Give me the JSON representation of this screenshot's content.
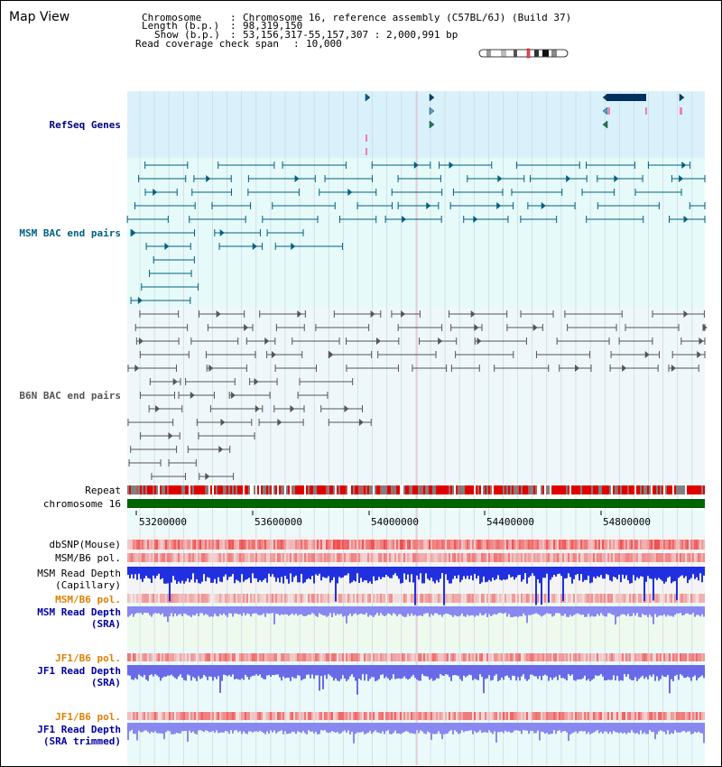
{
  "title": "Map View",
  "info": {
    "chromosome_key": "Chromosome",
    "chromosome_val": "Chromosome 16, reference assembly (C57BL/6J) (Build 37)",
    "length_key": "Length (b.p.)",
    "length_val": "98,319,150",
    "show_key": "Show (b.p.)",
    "show_val": "53,156,317-55,157,307 : 2,000,991 bp",
    "span_key": "Read coverage check span",
    "span_val": "10,000"
  },
  "tracks": {
    "refseq": "RefSeq Genes",
    "msm_bac": "MSM BAC end pairs",
    "b6n_bac": "B6N BAC end pairs",
    "repeat": "Repeat",
    "chromosome": "chromosome 16",
    "dbsnp": "dbSNP(Mouse)",
    "msm_b6_pol_1": "MSM/B6 pol.",
    "msm_depth_cap_1": "MSM Read Depth",
    "msm_depth_cap_2": "(Capillary)",
    "msm_b6_pol_2": "MSM/B6 pol.",
    "msm_depth_sra_1": "MSM Read Depth",
    "msm_depth_sra_2": "(SRA)",
    "jf1_b6_pol_1": "JF1/B6 pol.",
    "jf1_depth_sra_1": "JF1 Read Depth",
    "jf1_depth_sra_2": "(SRA)",
    "jf1_b6_pol_2": "JF1/B6 pol.",
    "jf1_depth_trim_1": "JF1 Read Depth",
    "jf1_depth_trim_2": "(SRA trimmed)"
  },
  "axis": {
    "ticks": [
      "53200000",
      "53600000",
      "54000000",
      "54400000",
      "54800000"
    ]
  },
  "colors": {
    "refseq_label": "#000080",
    "msm_bac_label": "#006080",
    "b6n_bac_label": "#555555",
    "orange_label": "#e08000",
    "blue_label": "#0000a0",
    "chromosome_bar": "#006400"
  }
}
